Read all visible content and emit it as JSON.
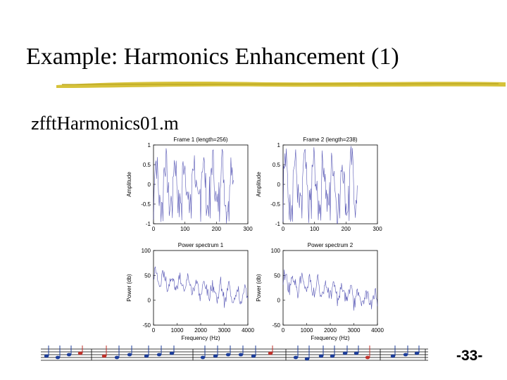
{
  "slide": {
    "title": "Example: Harmonics Enhancement (1)",
    "bullet_icon": "z",
    "bullet_text": "fftHarmonics01.m",
    "page_number": "-33-",
    "underline_color": "#d6c23a"
  },
  "chart_data": [
    {
      "type": "line",
      "title": "Frame 1 (length=256)",
      "xlabel": "",
      "ylabel": "Amplitude",
      "xlim": [
        0,
        300
      ],
      "ylim": [
        -1,
        1
      ],
      "xticks": [
        "0",
        "100",
        "200",
        "300"
      ],
      "yticks": [
        "-1",
        "-0.5",
        "0",
        "0.5",
        "1"
      ],
      "color": "#3a3aa8",
      "description_of_series": "impulse-like waveform samples between -1 and 1 over 256 samples"
    },
    {
      "type": "line",
      "title": "Frame 2 (length=238)",
      "xlabel": "",
      "ylabel": "Amplitude",
      "xlim": [
        0,
        300
      ],
      "ylim": [
        -1,
        1
      ],
      "xticks": [
        "0",
        "100",
        "200",
        "300"
      ],
      "yticks": [
        "-1",
        "-0.5",
        "0",
        "0.5",
        "1"
      ],
      "color": "#3a3aa8"
    },
    {
      "type": "line",
      "title": "Power spectrum 1",
      "xlabel": "Frequency (Hz)",
      "ylabel": "Power (db)",
      "xlim": [
        0,
        4000
      ],
      "ylim": [
        -50,
        100
      ],
      "xticks": [
        "0",
        "1000",
        "2000",
        "3000",
        "4000"
      ],
      "yticks": [
        "-50",
        "0",
        "50",
        "100"
      ],
      "color": "#3a3aa8"
    },
    {
      "type": "line",
      "title": "Power spectrum 2",
      "xlabel": "Frequency (Hz)",
      "ylabel": "Power (db)",
      "xlim": [
        0,
        4000
      ],
      "ylim": [
        -50,
        100
      ],
      "xticks": [
        "0",
        "1000",
        "2000",
        "3000",
        "4000"
      ],
      "yticks": [
        "-50",
        "0",
        "50",
        "100"
      ],
      "color": "#3a3aa8"
    }
  ]
}
